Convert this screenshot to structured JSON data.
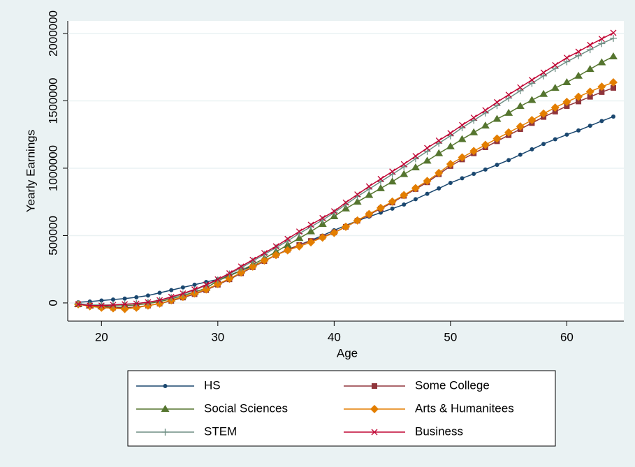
{
  "chart_data": {
    "type": "line",
    "x_label": "Age",
    "y_label": "Yearly Earnings",
    "x": [
      18,
      19,
      20,
      21,
      22,
      23,
      24,
      25,
      26,
      27,
      28,
      29,
      30,
      31,
      32,
      33,
      34,
      35,
      36,
      37,
      38,
      39,
      40,
      41,
      42,
      43,
      44,
      45,
      46,
      47,
      48,
      49,
      50,
      51,
      52,
      53,
      54,
      55,
      56,
      57,
      58,
      59,
      60,
      61,
      62,
      63,
      64
    ],
    "series": [
      {
        "name": "HS",
        "color": "#1a476f",
        "marker": "circle",
        "values": [
          5000,
          10000,
          18000,
          25000,
          32000,
          42000,
          55000,
          75000,
          95000,
          115000,
          135000,
          155000,
          175000,
          205000,
          240000,
          275000,
          315000,
          355000,
          395000,
          430000,
          465000,
          500000,
          539000,
          575000,
          610000,
          640000,
          670000,
          700000,
          730000,
          770000,
          810000,
          850000,
          891000,
          925000,
          958000,
          990000,
          1025000,
          1060000,
          1100000,
          1140000,
          1180000,
          1215000,
          1249000,
          1280000,
          1315000,
          1350000,
          1383000
        ]
      },
      {
        "name": "Some College",
        "color": "#90353b",
        "marker": "square",
        "values": [
          -10000,
          -20000,
          -30000,
          -35000,
          -35000,
          -30000,
          -20000,
          -5000,
          15000,
          40000,
          65000,
          95000,
          135000,
          175000,
          220000,
          265000,
          310000,
          355000,
          395000,
          430000,
          460000,
          490000,
          523000,
          565000,
          610000,
          655000,
          700000,
          745000,
          795000,
          845000,
          895000,
          955000,
          1016000,
          1065000,
          1110000,
          1155000,
          1200000,
          1245000,
          1290000,
          1335000,
          1380000,
          1420000,
          1461000,
          1495000,
          1530000,
          1565000,
          1596000
        ]
      },
      {
        "name": "Social Sciences",
        "color": "#55752f",
        "marker": "triangle",
        "values": [
          -10000,
          -20000,
          -25000,
          -25000,
          -20000,
          -15000,
          -5000,
          10000,
          30000,
          55000,
          80000,
          110000,
          165000,
          200000,
          240000,
          285000,
          330000,
          380000,
          430000,
          480000,
          530000,
          585000,
          642000,
          700000,
          750000,
          800000,
          850000,
          900000,
          955000,
          1005000,
          1055000,
          1110000,
          1161000,
          1215000,
          1265000,
          1315000,
          1365000,
          1410000,
          1460000,
          1505000,
          1550000,
          1595000,
          1637000,
          1685000,
          1735000,
          1785000,
          1829000
        ]
      },
      {
        "name": "Arts & Humanitees",
        "color": "#e37e00",
        "marker": "diamond",
        "values": [
          -10000,
          -25000,
          -35000,
          -40000,
          -45000,
          -35000,
          -20000,
          -5000,
          20000,
          45000,
          70000,
          100000,
          140000,
          180000,
          225000,
          270000,
          315000,
          355000,
          390000,
          420000,
          450000,
          485000,
          520000,
          565000,
          612000,
          660000,
          705000,
          752000,
          800000,
          852000,
          905000,
          965000,
          1031000,
          1080000,
          1127000,
          1173000,
          1220000,
          1265000,
          1310000,
          1357000,
          1405000,
          1450000,
          1492000,
          1530000,
          1568000,
          1605000,
          1637000
        ]
      },
      {
        "name": "STEM",
        "color": "#6e8e84",
        "marker": "plus",
        "values": [
          -5000,
          -15000,
          -15000,
          -15000,
          -10000,
          -5000,
          5000,
          20000,
          40000,
          65000,
          95000,
          130000,
          170000,
          215000,
          260000,
          310000,
          360000,
          410000,
          460000,
          515000,
          565000,
          615000,
          670000,
          730000,
          790000,
          845000,
          900000,
          955000,
          1010000,
          1070000,
          1125000,
          1185000,
          1240000,
          1300000,
          1355000,
          1410000,
          1465000,
          1520000,
          1575000,
          1630000,
          1685000,
          1740000,
          1790000,
          1835000,
          1880000,
          1925000,
          1964000
        ]
      },
      {
        "name": "Business",
        "color": "#c10534",
        "marker": "x",
        "values": [
          -10000,
          -20000,
          -20000,
          -15000,
          -10000,
          -5000,
          5000,
          20000,
          45000,
          70000,
          100000,
          135000,
          175000,
          220000,
          270000,
          320000,
          370000,
          420000,
          475000,
          530000,
          580000,
          630000,
          680000,
          745000,
          805000,
          865000,
          920000,
          975000,
          1030000,
          1090000,
          1150000,
          1205000,
          1260000,
          1320000,
          1375000,
          1430000,
          1490000,
          1545000,
          1600000,
          1655000,
          1710000,
          1765000,
          1820000,
          1865000,
          1915000,
          1960000,
          2005000
        ]
      }
    ],
    "xlim": [
      17.1,
      64.9
    ],
    "xticks": [
      20,
      30,
      40,
      50,
      60
    ],
    "ylim": [
      -135000,
      2093000
    ],
    "yticks": [
      0,
      500000,
      1000000,
      1500000,
      2000000
    ],
    "grid": true,
    "legend_position": "bottom"
  }
}
